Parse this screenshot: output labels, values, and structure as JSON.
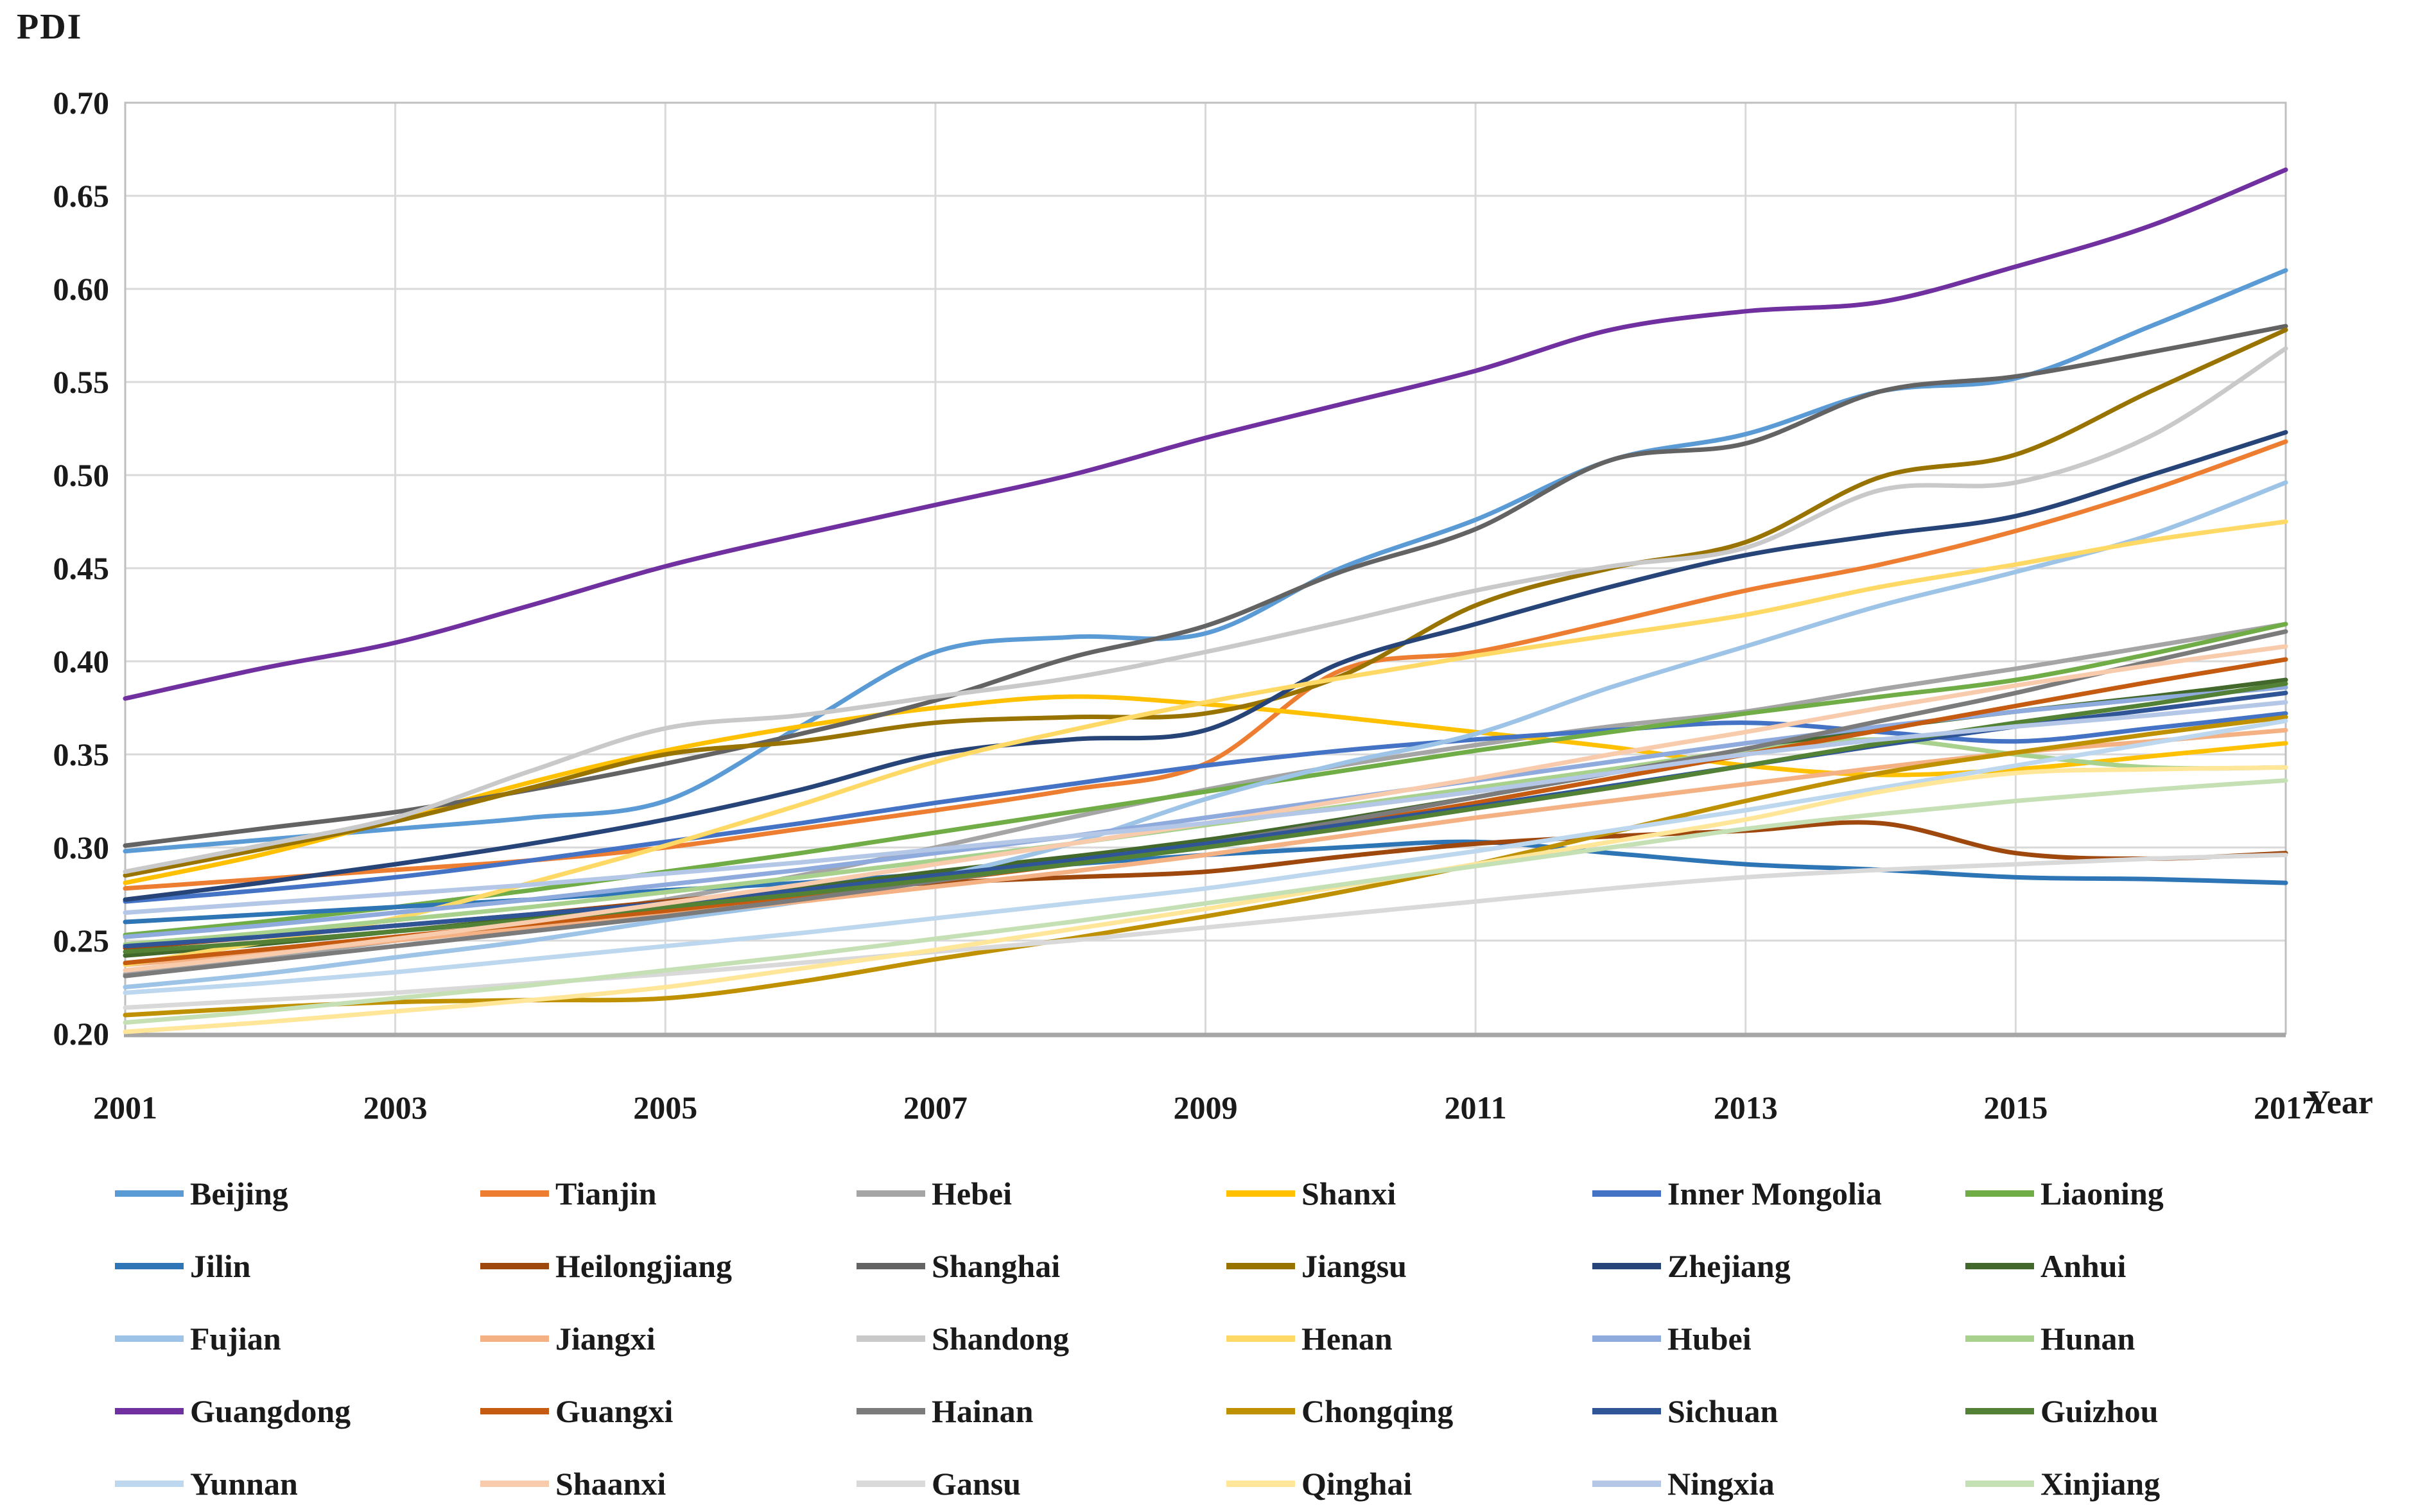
{
  "figure": {
    "y_axis_title": "PDI",
    "x_axis_title": "Year"
  },
  "chart_data": {
    "type": "line",
    "title": "",
    "xlabel": "Year",
    "ylabel": "PDI",
    "x": [
      2001,
      2002,
      2003,
      2004,
      2005,
      2006,
      2007,
      2008,
      2009,
      2010,
      2011,
      2012,
      2013,
      2014,
      2015,
      2016,
      2017
    ],
    "x_tick_labels": [
      "2001",
      "2003",
      "2005",
      "2007",
      "2009",
      "2011",
      "2013",
      "2015",
      "2017"
    ],
    "y_tick_labels": [
      "0.70",
      "0.65",
      "0.60",
      "0.55",
      "0.50",
      "0.45",
      "0.40",
      "0.35",
      "0.30",
      "0.25",
      "0.20"
    ],
    "ylim": [
      0.2,
      0.7
    ],
    "y_tick_step": 0.05,
    "grid": true,
    "smooth_lines": true,
    "legend_position": "bottom",
    "legend_rows": 5,
    "legend_columns": 6,
    "grid_color": "#D9D9D9",
    "border_color": "#BFBFBF",
    "axis_line_color": "#A6A6A6",
    "series": [
      {
        "name": "Beijing",
        "color": "#5B9BD5",
        "values": [
          0.298,
          0.304,
          0.31,
          0.316,
          0.325,
          0.365,
          0.405,
          0.413,
          0.415,
          0.45,
          0.476,
          0.508,
          0.522,
          0.545,
          0.552,
          0.58,
          0.61
        ]
      },
      {
        "name": "Tianjin",
        "color": "#ED7D31",
        "values": [
          0.278,
          0.283,
          0.288,
          0.293,
          0.3,
          0.31,
          0.32,
          0.331,
          0.345,
          0.395,
          0.405,
          0.421,
          0.438,
          0.452,
          0.47,
          0.492,
          0.518
        ]
      },
      {
        "name": "Hebei",
        "color": "#A5A5A5",
        "values": [
          0.232,
          0.241,
          0.25,
          0.261,
          0.272,
          0.285,
          0.3,
          0.316,
          0.331,
          0.344,
          0.355,
          0.365,
          0.373,
          0.385,
          0.396,
          0.408,
          0.42
        ]
      },
      {
        "name": "Shanxi",
        "color": "#FFC000",
        "values": [
          0.281,
          0.296,
          0.315,
          0.335,
          0.352,
          0.365,
          0.375,
          0.381,
          0.377,
          0.37,
          0.362,
          0.354,
          0.344,
          0.339,
          0.342,
          0.349,
          0.356
        ]
      },
      {
        "name": "Inner Mongolia",
        "color": "#4472C4",
        "values": [
          0.271,
          0.277,
          0.284,
          0.293,
          0.303,
          0.313,
          0.324,
          0.334,
          0.344,
          0.352,
          0.358,
          0.363,
          0.367,
          0.362,
          0.357,
          0.364,
          0.372
        ]
      },
      {
        "name": "Liaoning",
        "color": "#70AD47",
        "values": [
          0.253,
          0.26,
          0.268,
          0.277,
          0.287,
          0.297,
          0.308,
          0.319,
          0.33,
          0.341,
          0.352,
          0.362,
          0.372,
          0.381,
          0.39,
          0.404,
          0.42
        ]
      },
      {
        "name": "Jilin",
        "color": "#2E75B6",
        "values": [
          0.26,
          0.264,
          0.268,
          0.272,
          0.277,
          0.281,
          0.286,
          0.291,
          0.296,
          0.3,
          0.303,
          0.297,
          0.291,
          0.288,
          0.284,
          0.283,
          0.281
        ]
      },
      {
        "name": "Heilongjiang",
        "color": "#9E480E",
        "values": [
          0.246,
          0.252,
          0.258,
          0.264,
          0.271,
          0.277,
          0.281,
          0.284,
          0.287,
          0.295,
          0.302,
          0.306,
          0.309,
          0.313,
          0.297,
          0.294,
          0.297
        ]
      },
      {
        "name": "Shanghai",
        "color": "#636363",
        "values": [
          0.301,
          0.31,
          0.319,
          0.331,
          0.345,
          0.361,
          0.379,
          0.402,
          0.419,
          0.448,
          0.471,
          0.508,
          0.517,
          0.545,
          0.553,
          0.566,
          0.58
        ]
      },
      {
        "name": "Jiangsu",
        "color": "#997300",
        "values": [
          0.285,
          0.299,
          0.314,
          0.332,
          0.35,
          0.357,
          0.367,
          0.37,
          0.372,
          0.392,
          0.43,
          0.45,
          0.464,
          0.499,
          0.511,
          0.545,
          0.578
        ]
      },
      {
        "name": "Zhejiang",
        "color": "#264478",
        "values": [
          0.272,
          0.281,
          0.291,
          0.302,
          0.315,
          0.331,
          0.35,
          0.358,
          0.363,
          0.399,
          0.42,
          0.44,
          0.457,
          0.468,
          0.478,
          0.5,
          0.523
        ]
      },
      {
        "name": "Anhui",
        "color": "#43682B",
        "values": [
          0.242,
          0.248,
          0.255,
          0.262,
          0.27,
          0.278,
          0.287,
          0.295,
          0.304,
          0.315,
          0.327,
          0.34,
          0.352,
          0.364,
          0.373,
          0.381,
          0.39
        ]
      },
      {
        "name": "Fujian",
        "color": "#9DC3E6",
        "values": [
          0.225,
          0.232,
          0.241,
          0.25,
          0.261,
          0.271,
          0.284,
          0.302,
          0.326,
          0.345,
          0.361,
          0.386,
          0.408,
          0.43,
          0.448,
          0.468,
          0.496
        ]
      },
      {
        "name": "Jiangxi",
        "color": "#F4B183",
        "values": [
          0.237,
          0.243,
          0.25,
          0.257,
          0.264,
          0.271,
          0.279,
          0.287,
          0.296,
          0.306,
          0.316,
          0.325,
          0.334,
          0.343,
          0.351,
          0.357,
          0.363
        ]
      },
      {
        "name": "Shandong",
        "color": "#C9C9C9",
        "values": [
          0.287,
          0.301,
          0.316,
          0.341,
          0.364,
          0.371,
          0.381,
          0.391,
          0.405,
          0.421,
          0.438,
          0.451,
          0.461,
          0.492,
          0.496,
          0.521,
          0.568
        ]
      },
      {
        "name": "Henan",
        "color": "#FFD966",
        "values": [
          0.237,
          0.249,
          0.262,
          0.281,
          0.301,
          0.323,
          0.346,
          0.363,
          0.378,
          0.391,
          0.403,
          0.414,
          0.425,
          0.44,
          0.452,
          0.465,
          0.475
        ]
      },
      {
        "name": "Hubei",
        "color": "#8FAADC",
        "values": [
          0.252,
          0.258,
          0.265,
          0.272,
          0.28,
          0.288,
          0.297,
          0.306,
          0.316,
          0.326,
          0.336,
          0.346,
          0.356,
          0.365,
          0.373,
          0.38,
          0.386
        ]
      },
      {
        "name": "Hunan",
        "color": "#A9D18E",
        "values": [
          0.248,
          0.254,
          0.261,
          0.268,
          0.276,
          0.284,
          0.293,
          0.302,
          0.312,
          0.322,
          0.332,
          0.342,
          0.352,
          0.358,
          0.35,
          0.343,
          0.343
        ]
      },
      {
        "name": "Guangdong",
        "color": "#7030A0",
        "values": [
          0.38,
          0.396,
          0.41,
          0.43,
          0.451,
          0.468,
          0.484,
          0.5,
          0.52,
          0.538,
          0.556,
          0.578,
          0.588,
          0.593,
          0.612,
          0.634,
          0.664
        ]
      },
      {
        "name": "Guangxi",
        "color": "#C55A11",
        "values": [
          0.238,
          0.245,
          0.252,
          0.259,
          0.266,
          0.274,
          0.282,
          0.291,
          0.301,
          0.312,
          0.324,
          0.337,
          0.35,
          0.363,
          0.376,
          0.389,
          0.401
        ]
      },
      {
        "name": "Hainan",
        "color": "#7B7B7B",
        "values": [
          0.231,
          0.239,
          0.247,
          0.255,
          0.263,
          0.272,
          0.282,
          0.292,
          0.302,
          0.314,
          0.327,
          0.34,
          0.353,
          0.368,
          0.383,
          0.4,
          0.416
        ]
      },
      {
        "name": "Chongqing",
        "color": "#BF9000",
        "values": [
          0.21,
          0.214,
          0.217,
          0.218,
          0.219,
          0.228,
          0.24,
          0.251,
          0.263,
          0.276,
          0.291,
          0.308,
          0.325,
          0.34,
          0.351,
          0.361,
          0.37
        ]
      },
      {
        "name": "Sichuan",
        "color": "#2F5597",
        "values": [
          0.247,
          0.252,
          0.258,
          0.264,
          0.27,
          0.277,
          0.285,
          0.293,
          0.302,
          0.312,
          0.322,
          0.333,
          0.344,
          0.355,
          0.365,
          0.374,
          0.383
        ]
      },
      {
        "name": "Guizhou",
        "color": "#538135",
        "values": [
          0.244,
          0.249,
          0.255,
          0.261,
          0.268,
          0.275,
          0.283,
          0.291,
          0.3,
          0.31,
          0.321,
          0.332,
          0.344,
          0.356,
          0.367,
          0.377,
          0.388
        ]
      },
      {
        "name": "Yunnan",
        "color": "#BDD7EE",
        "values": [
          0.222,
          0.227,
          0.233,
          0.24,
          0.247,
          0.254,
          0.262,
          0.27,
          0.278,
          0.288,
          0.298,
          0.309,
          0.32,
          0.332,
          0.344,
          0.356,
          0.368
        ]
      },
      {
        "name": "Shaanxi",
        "color": "#F8CBAD",
        "values": [
          0.234,
          0.242,
          0.251,
          0.26,
          0.27,
          0.28,
          0.291,
          0.302,
          0.313,
          0.325,
          0.337,
          0.35,
          0.362,
          0.375,
          0.387,
          0.398,
          0.408
        ]
      },
      {
        "name": "Gansu",
        "color": "#D9D9D9",
        "values": [
          0.214,
          0.218,
          0.222,
          0.227,
          0.232,
          0.238,
          0.244,
          0.25,
          0.257,
          0.264,
          0.271,
          0.278,
          0.284,
          0.288,
          0.291,
          0.294,
          0.296
        ]
      },
      {
        "name": "Qinghai",
        "color": "#FFE699",
        "values": [
          0.201,
          0.206,
          0.212,
          0.218,
          0.225,
          0.235,
          0.245,
          0.256,
          0.267,
          0.279,
          0.291,
          0.303,
          0.315,
          0.33,
          0.34,
          0.342,
          0.343
        ]
      },
      {
        "name": "Ningxia",
        "color": "#B4C7E7",
        "values": [
          0.265,
          0.27,
          0.275,
          0.28,
          0.286,
          0.292,
          0.299,
          0.306,
          0.313,
          0.321,
          0.33,
          0.34,
          0.35,
          0.358,
          0.365,
          0.371,
          0.378
        ]
      },
      {
        "name": "Xinjiang",
        "color": "#C5E0B4",
        "values": [
          0.206,
          0.212,
          0.219,
          0.226,
          0.234,
          0.242,
          0.251,
          0.26,
          0.27,
          0.28,
          0.29,
          0.3,
          0.31,
          0.318,
          0.325,
          0.331,
          0.336
        ]
      }
    ]
  }
}
